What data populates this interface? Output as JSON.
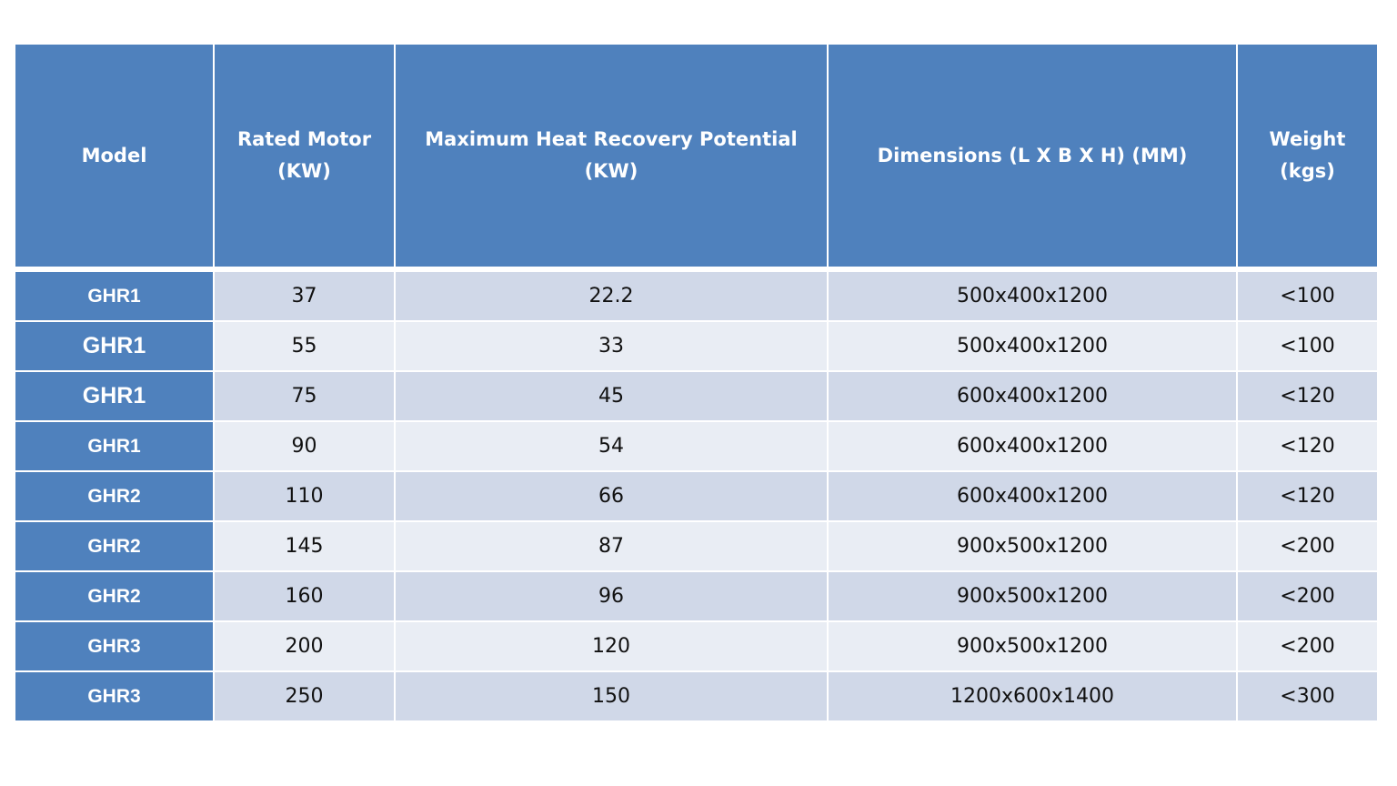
{
  "colors": {
    "header": "#4F81BD",
    "row_odd": "#D0D8E8",
    "row_even": "#E9EDF4",
    "header_text": "#FFFFFF"
  },
  "headers": [
    "Model",
    "Rated Motor (KW)",
    "Maximum  Heat Recovery Potential (KW)",
    "Dimensions  (L X B X H) (MM)",
    "Weight (kgs)"
  ],
  "rows": [
    [
      "GHR1",
      "37",
      "22.2",
      "500x400x1200",
      "<100"
    ],
    [
      "GHR1",
      "55",
      "33",
      "500x400x1200",
      "<100"
    ],
    [
      "GHR1",
      "75",
      "45",
      "600x400x1200",
      "<120"
    ],
    [
      "GHR1",
      "90",
      "54",
      "600x400x1200",
      "<120"
    ],
    [
      "GHR2",
      "110",
      "66",
      "600x400x1200",
      "<120"
    ],
    [
      "GHR2",
      "145",
      "87",
      "900x500x1200",
      "<200"
    ],
    [
      "GHR2",
      "160",
      "96",
      "900x500x1200",
      "<200"
    ],
    [
      "GHR3",
      "200",
      "120",
      "900x500x1200",
      "<200"
    ],
    [
      "GHR3",
      "250",
      "150",
      "1200x600x1400",
      "<300"
    ]
  ]
}
